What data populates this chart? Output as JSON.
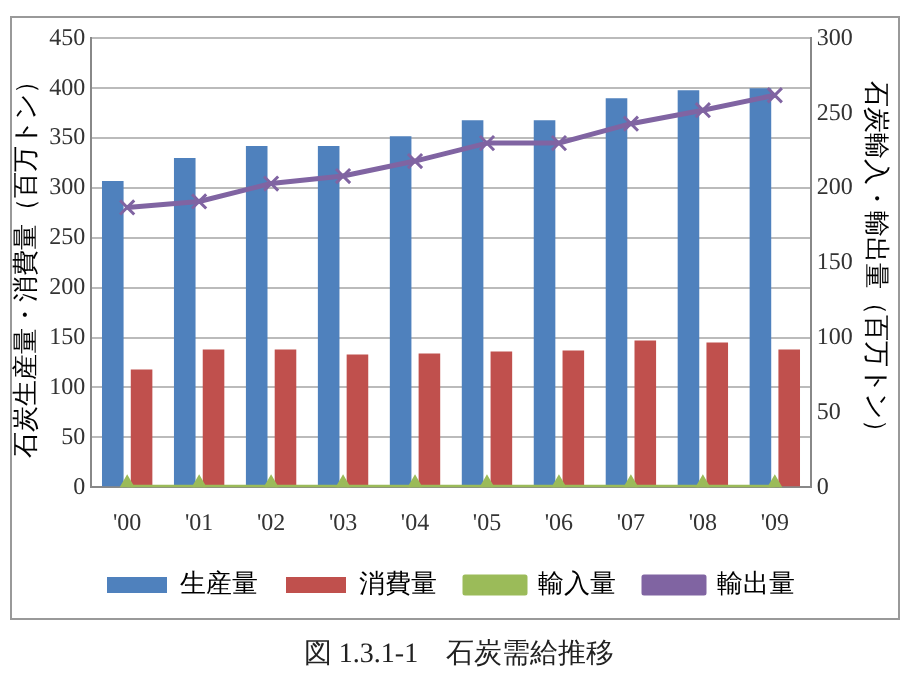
{
  "chart_data": {
    "type": "bar",
    "title": "図 1.3.1-1　石炭需給推移",
    "ylabel": "石炭生産量・消費量（百万トン）",
    "y2label": "石炭輸入・輸出量（百万トン）",
    "categories": [
      "'00",
      "'01",
      "'02",
      "'03",
      "'04",
      "'05",
      "'06",
      "'07",
      "'08",
      "'09"
    ],
    "series": [
      {
        "name": "生産量",
        "color": "#4f81bd",
        "values": [
          307,
          330,
          342,
          342,
          352,
          368,
          368,
          390,
          398,
          400
        ]
      },
      {
        "name": "消費量",
        "color": "#c0504d",
        "values": [
          118,
          138,
          138,
          133,
          134,
          136,
          137,
          147,
          145,
          138
        ]
      },
      {
        "name": "輸入量",
        "type": "line",
        "axis": "y2",
        "marker": "triangle",
        "color": "#9bbb59",
        "values": [
          0,
          0,
          0,
          0,
          0,
          0,
          0,
          0,
          0,
          0
        ]
      },
      {
        "name": "輸出量",
        "type": "line",
        "axis": "y2",
        "marker": "cross",
        "color": "#8064a2",
        "values": [
          187,
          191,
          203,
          208,
          218,
          230,
          230,
          243,
          252,
          262
        ]
      }
    ],
    "ylim": [
      0,
      450
    ],
    "yticks": [
      0,
      50,
      100,
      150,
      200,
      250,
      300,
      350,
      400,
      450
    ],
    "y2lim": [
      0,
      300
    ],
    "y2ticks": [
      0,
      50,
      100,
      150,
      200,
      250,
      300
    ],
    "grid": "y",
    "legend": "bottom"
  }
}
